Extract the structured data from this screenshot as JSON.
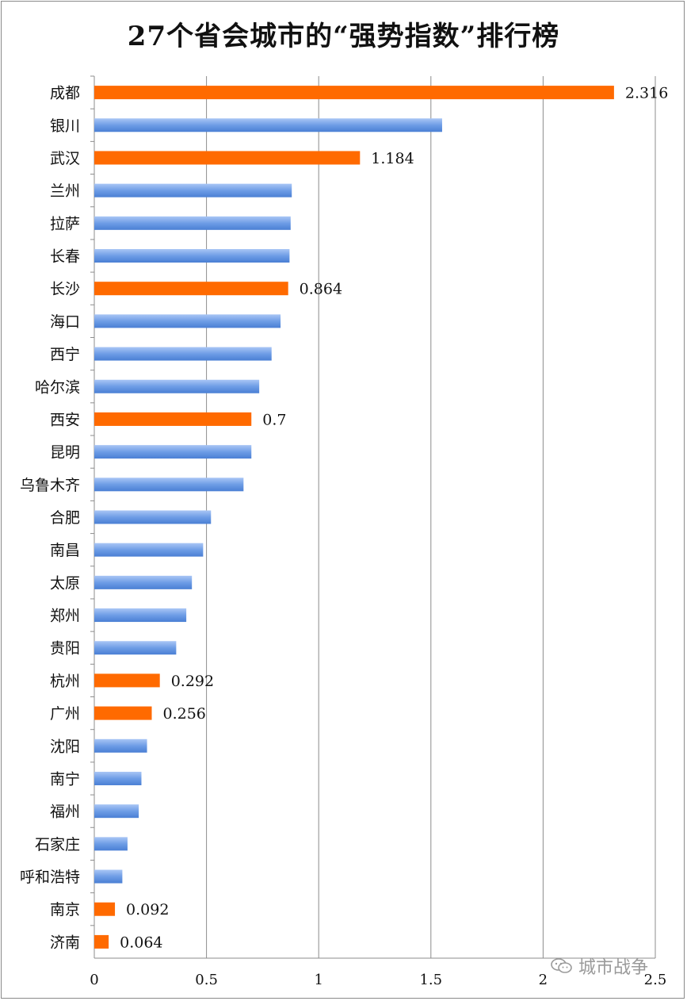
{
  "chart_data": {
    "type": "bar",
    "orientation": "horizontal",
    "title": "27个省会城市的“强势指数”排行榜",
    "xlim": [
      0,
      2.5
    ],
    "x_ticks": [
      "0",
      "0.5",
      "1",
      "1.5",
      "2",
      "2.5"
    ],
    "grid": true,
    "colors": {
      "highlight": "#ff6a00",
      "normal": "#6e9de6"
    },
    "categories": [
      "成都",
      "银川",
      "武汉",
      "兰州",
      "拉萨",
      "长春",
      "长沙",
      "海口",
      "西宁",
      "哈尔滨",
      "西安",
      "昆明",
      "乌鲁木齐",
      "合肥",
      "南昌",
      "太原",
      "郑州",
      "贵阳",
      "杭州",
      "广州",
      "沈阳",
      "南宁",
      "福州",
      "石家庄",
      "呼和浩特",
      "南京",
      "济南"
    ],
    "values": [
      2.316,
      1.55,
      1.184,
      0.88,
      0.875,
      0.87,
      0.864,
      0.83,
      0.79,
      0.735,
      0.7,
      0.7,
      0.665,
      0.52,
      0.485,
      0.435,
      0.41,
      0.365,
      0.292,
      0.256,
      0.235,
      0.21,
      0.198,
      0.148,
      0.125,
      0.092,
      0.064
    ],
    "highlighted": [
      true,
      false,
      true,
      false,
      false,
      false,
      true,
      false,
      false,
      false,
      true,
      false,
      false,
      false,
      false,
      false,
      false,
      false,
      true,
      true,
      false,
      false,
      false,
      false,
      false,
      true,
      true
    ],
    "data_labels": [
      "2.316",
      "",
      "1.184",
      "",
      "",
      "",
      "0.864",
      "",
      "",
      "",
      "0.7",
      "",
      "",
      "",
      "",
      "",
      "",
      "",
      "0.292",
      "0.256",
      "",
      "",
      "",
      "",
      "",
      "0.092",
      "0.064"
    ]
  },
  "watermark": {
    "text": "城市战争",
    "icon": "wechat-icon"
  }
}
